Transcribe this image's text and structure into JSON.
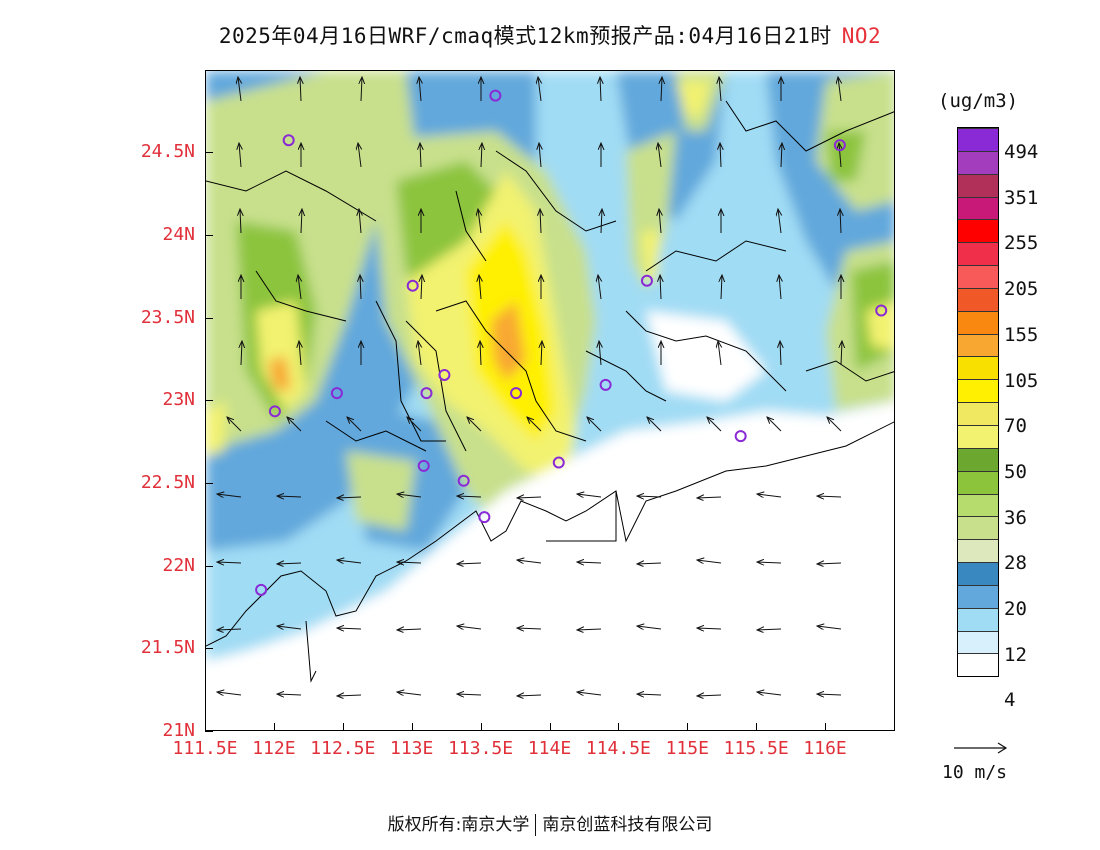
{
  "title": {
    "main": "2025年04月16日WRF/cmaq模式12km预报产品:04月16日21时",
    "pollutant": "NO2"
  },
  "axes": {
    "y_labels": [
      "24.5N",
      "24N",
      "23.5N",
      "23N",
      "22.5N",
      "22N",
      "21.5N",
      "21N"
    ],
    "y_values": [
      24.5,
      24,
      23.5,
      23,
      22.5,
      22,
      21.5,
      21
    ],
    "x_labels": [
      "111.5E",
      "112E",
      "112.5E",
      "113E",
      "113.5E",
      "114E",
      "114.5E",
      "115E",
      "115.5E",
      "116E"
    ],
    "x_values": [
      111.5,
      112,
      112.5,
      113,
      113.5,
      114,
      114.5,
      115,
      115.5,
      116
    ],
    "lon_range": [
      111.5,
      116.5
    ],
    "lat_range": [
      21.0,
      25.0
    ]
  },
  "colorbar": {
    "unit": "(ug/m3)",
    "labels": [
      "494",
      "351",
      "255",
      "205",
      "155",
      "105",
      "70",
      "50",
      "36",
      "28",
      "20",
      "12",
      "4"
    ],
    "colors": [
      "#8a2ad6",
      "#a43cbe",
      "#b0305a",
      "#c81878",
      "#ff0000",
      "#f0304a",
      "#f85a5a",
      "#f05828",
      "#f88810",
      "#f8a830",
      "#f8e000",
      "#fef000",
      "#f0e860",
      "#f2f270",
      "#6ca830",
      "#8cc43c",
      "#b6dc6e",
      "#c8e08c",
      "#dde8bc",
      "#3a88c0",
      "#62a8dc",
      "#a0dcf4",
      "#d8f0fc",
      "#ffffff"
    ]
  },
  "vector_reference": {
    "label": "10 m/s"
  },
  "stations": [
    {
      "lon": 112.1,
      "lat": 24.58
    },
    {
      "lon": 113.6,
      "lat": 24.85
    },
    {
      "lon": 113.0,
      "lat": 23.7
    },
    {
      "lon": 113.23,
      "lat": 23.16
    },
    {
      "lon": 113.1,
      "lat": 23.05
    },
    {
      "lon": 113.75,
      "lat": 23.05
    },
    {
      "lon": 114.4,
      "lat": 23.1
    },
    {
      "lon": 112.45,
      "lat": 23.05
    },
    {
      "lon": 112.0,
      "lat": 22.94
    },
    {
      "lon": 113.08,
      "lat": 22.61
    },
    {
      "lon": 113.37,
      "lat": 22.52
    },
    {
      "lon": 113.52,
      "lat": 22.3
    },
    {
      "lon": 114.06,
      "lat": 22.63
    },
    {
      "lon": 114.7,
      "lat": 23.73
    },
    {
      "lon": 115.38,
      "lat": 22.79
    },
    {
      "lon": 116.1,
      "lat": 24.55
    },
    {
      "lon": 116.4,
      "lat": 23.55
    },
    {
      "lon": 111.9,
      "lat": 21.86
    }
  ],
  "footer": {
    "left": "版权所有:南京大学",
    "right": "南京创蓝科技有限公司"
  }
}
